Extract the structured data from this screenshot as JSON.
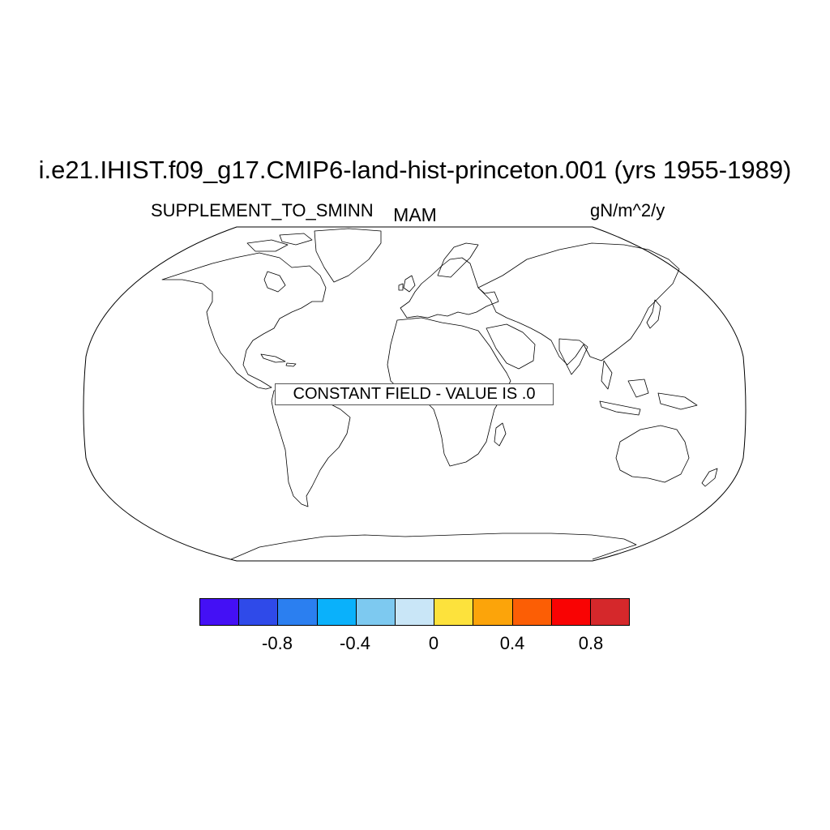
{
  "title": "i.e21.IHIST.f09_g17.CMIP6-land-hist-princeton.001 (yrs 1955-1989)",
  "left_string": "SUPPLEMENT_TO_SMINN",
  "center_string": "MAM",
  "right_string": "gN/m^2/y",
  "notice": "CONSTANT FIELD - VALUE IS .0",
  "projection": "robinson",
  "colorbar": {
    "colors": [
      "#4410f5",
      "#2f4ae9",
      "#2b7ff0",
      "#0ab1fb",
      "#7dc9f0",
      "#c9e6f7",
      "#fde23c",
      "#fca40a",
      "#fc5e05",
      "#f90303",
      "#d5282b"
    ],
    "labels": [
      "-0.8",
      "-0.4",
      "0",
      "0.4",
      "0.8"
    ]
  }
}
